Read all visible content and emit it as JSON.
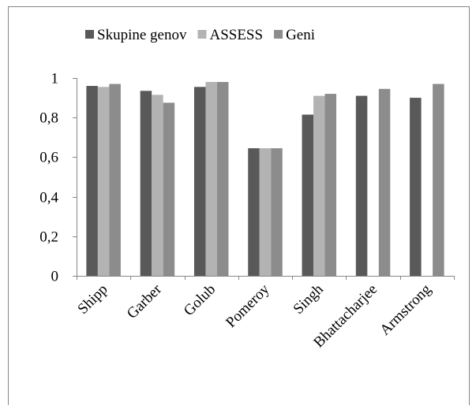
{
  "chart_data": {
    "type": "bar",
    "categories": [
      "Shipp",
      "Garber",
      "Golub",
      "Pomeroy",
      "Singh",
      "Bhattacharjee",
      "Armstrong"
    ],
    "series": [
      {
        "name": "Skupine genov",
        "color": "#595959",
        "values": [
          0.96,
          0.935,
          0.955,
          0.645,
          0.815,
          0.91,
          0.9
        ]
      },
      {
        "name": "ASSESS",
        "color": "#b3b3b3",
        "values": [
          0.955,
          0.915,
          0.98,
          0.645,
          0.91,
          null,
          null
        ]
      },
      {
        "name": "Geni",
        "color": "#8c8c8c",
        "values": [
          0.97,
          0.875,
          0.98,
          0.645,
          0.92,
          0.945,
          0.97
        ]
      }
    ],
    "ylim": [
      0,
      1
    ],
    "yticks": [
      0,
      {
        "value": 0.2,
        "label": "0,2"
      },
      {
        "value": 0.4,
        "label": "0,4"
      },
      {
        "value": 0.6,
        "label": "0,6"
      },
      {
        "value": 0.8,
        "label": "0,8"
      },
      1
    ],
    "legend": "top"
  }
}
